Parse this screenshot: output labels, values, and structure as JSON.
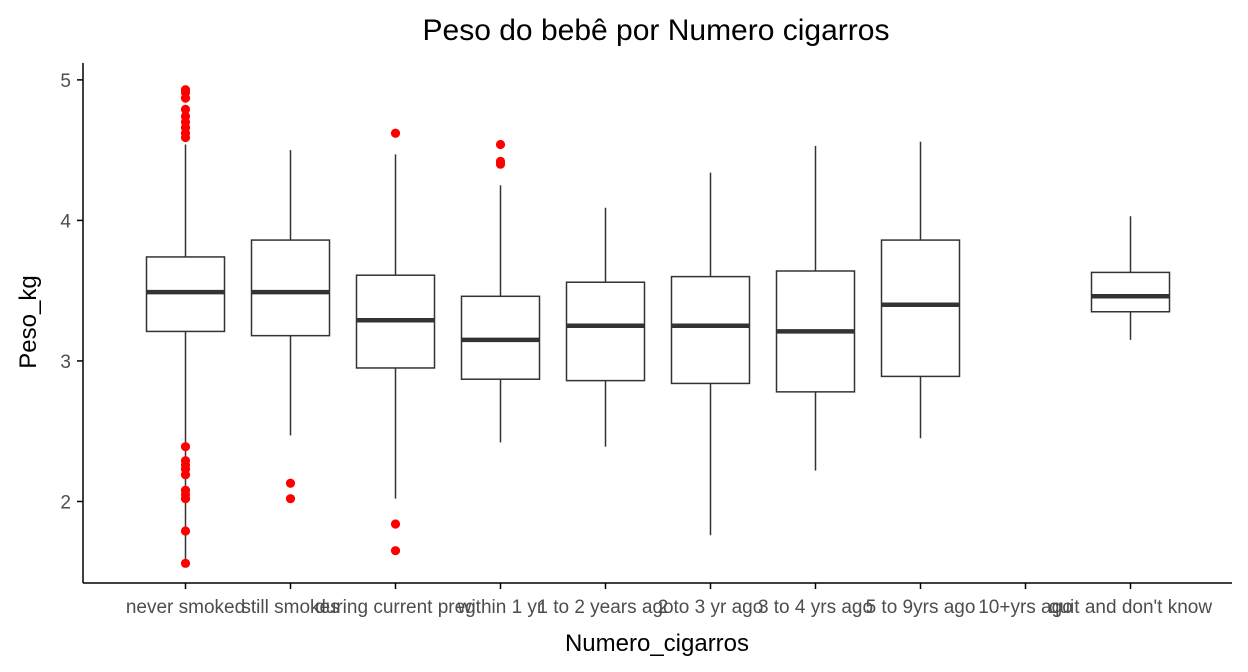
{
  "chart_data": {
    "type": "box",
    "title": "Peso do bebê por Numero cigarros",
    "xlabel": "Numero_cigarros",
    "ylabel": "Peso_kg",
    "ylim": [
      1.42,
      5.12
    ],
    "yticks": [
      2,
      3,
      4,
      5
    ],
    "grid": false,
    "legend": "none",
    "colors": {
      "box_line": "#333333",
      "outlier": "#ff0000",
      "axis": "#000000",
      "tick_text": "#4d4d4d"
    },
    "categories": [
      "never smoked",
      "still smokes",
      "during current preg",
      "within 1 yr",
      "1 to 2 years ago",
      "2 to 3 yr ago",
      "3 to 4 yrs ago",
      "5 to 9yrs ago",
      "10+yrs ago",
      "quit and don't know"
    ],
    "boxes": [
      {
        "category": "never smoked",
        "min": 1.56,
        "q1": 3.21,
        "median": 3.49,
        "q3": 3.74,
        "max": 4.54,
        "outliers": [
          4.93,
          4.91,
          4.87,
          4.79,
          4.74,
          4.7,
          4.66,
          4.62,
          4.59,
          2.39,
          2.29,
          2.26,
          2.23,
          2.19,
          2.08,
          2.05,
          2.02,
          1.79,
          1.56
        ]
      },
      {
        "category": "still smokes",
        "min": 2.47,
        "q1": 3.18,
        "median": 3.49,
        "q3": 3.86,
        "max": 4.5,
        "outliers": [
          2.13,
          2.02
        ]
      },
      {
        "category": "during current preg",
        "min": 2.02,
        "q1": 2.95,
        "median": 3.29,
        "q3": 3.61,
        "max": 4.47,
        "outliers": [
          4.62,
          1.84,
          1.65
        ]
      },
      {
        "category": "within 1 yr",
        "min": 2.42,
        "q1": 2.87,
        "median": 3.15,
        "q3": 3.46,
        "max": 4.25,
        "outliers": [
          4.54,
          4.42,
          4.4
        ]
      },
      {
        "category": "1 to 2 years ago",
        "min": 2.39,
        "q1": 2.86,
        "median": 3.25,
        "q3": 3.56,
        "max": 4.09,
        "outliers": []
      },
      {
        "category": "2 to 3 yr ago",
        "min": 1.76,
        "q1": 2.84,
        "median": 3.25,
        "q3": 3.6,
        "max": 4.34,
        "outliers": []
      },
      {
        "category": "3 to 4 yrs ago",
        "min": 2.22,
        "q1": 2.78,
        "median": 3.21,
        "q3": 3.64,
        "max": 4.53,
        "outliers": []
      },
      {
        "category": "5 to 9yrs ago",
        "min": 2.45,
        "q1": 2.89,
        "median": 3.4,
        "q3": 3.86,
        "max": 4.56,
        "outliers": []
      },
      {
        "category": "10+yrs ago",
        "min": null,
        "q1": null,
        "median": null,
        "q3": null,
        "max": null,
        "outliers": []
      },
      {
        "category": "quit and don't know",
        "min": 3.15,
        "q1": 3.35,
        "median": 3.46,
        "q3": 3.63,
        "max": 4.03,
        "outliers": []
      }
    ]
  }
}
